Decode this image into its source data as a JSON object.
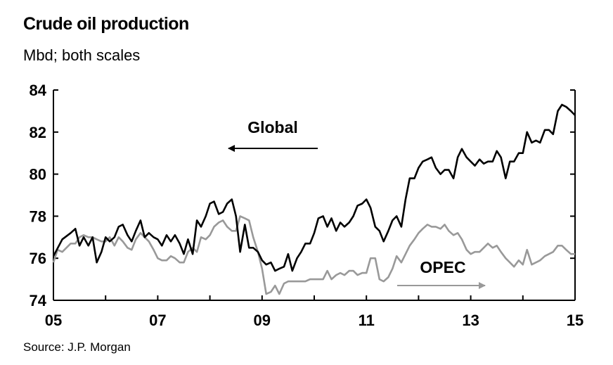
{
  "title": "Crude oil production",
  "subtitle": "Mbd; both scales",
  "source": "Source: J.P. Morgan",
  "chart_data": {
    "type": "line",
    "title": "Crude oil production",
    "subtitle": "Mbd; both scales",
    "xlim": [
      2005,
      2015
    ],
    "ylim": [
      74,
      84
    ],
    "y_ticks": [
      74,
      76,
      78,
      80,
      82,
      84
    ],
    "x_ticks": [
      2005,
      2007,
      2009,
      2011,
      2013,
      2015
    ],
    "x_tick_labels": [
      "05",
      "07",
      "09",
      "11",
      "13",
      "15"
    ],
    "y_tick_labels": [
      "74",
      "76",
      "78",
      "80",
      "82",
      "84"
    ],
    "grid": false,
    "series": [
      {
        "name": "Global",
        "color": "#000000",
        "annotation": "Global",
        "annotation_arrow": "left",
        "points": [
          [
            2005.0,
            76.1
          ],
          [
            2005.17,
            76.9
          ],
          [
            2005.33,
            77.2
          ],
          [
            2005.42,
            77.4
          ],
          [
            2005.5,
            76.6
          ],
          [
            2005.58,
            77.0
          ],
          [
            2005.67,
            76.6
          ],
          [
            2005.75,
            77.0
          ],
          [
            2005.83,
            75.8
          ],
          [
            2005.92,
            76.3
          ],
          [
            2006.0,
            77.0
          ],
          [
            2006.08,
            76.8
          ],
          [
            2006.17,
            77.0
          ],
          [
            2006.25,
            77.5
          ],
          [
            2006.33,
            77.6
          ],
          [
            2006.42,
            77.1
          ],
          [
            2006.5,
            76.8
          ],
          [
            2006.58,
            77.3
          ],
          [
            2006.67,
            77.8
          ],
          [
            2006.75,
            77.0
          ],
          [
            2006.83,
            77.2
          ],
          [
            2006.92,
            77.0
          ],
          [
            2007.0,
            76.9
          ],
          [
            2007.08,
            76.6
          ],
          [
            2007.17,
            77.1
          ],
          [
            2007.25,
            76.8
          ],
          [
            2007.33,
            77.1
          ],
          [
            2007.42,
            76.7
          ],
          [
            2007.5,
            76.2
          ],
          [
            2007.58,
            76.9
          ],
          [
            2007.67,
            76.2
          ],
          [
            2007.75,
            77.8
          ],
          [
            2007.83,
            77.5
          ],
          [
            2007.92,
            78.0
          ],
          [
            2008.0,
            78.6
          ],
          [
            2008.08,
            78.7
          ],
          [
            2008.17,
            78.1
          ],
          [
            2008.25,
            78.2
          ],
          [
            2008.33,
            78.6
          ],
          [
            2008.42,
            78.8
          ],
          [
            2008.5,
            78.0
          ],
          [
            2008.58,
            76.3
          ],
          [
            2008.67,
            77.6
          ],
          [
            2008.75,
            76.5
          ],
          [
            2008.83,
            76.5
          ],
          [
            2008.92,
            76.3
          ],
          [
            2009.0,
            75.9
          ],
          [
            2009.08,
            75.7
          ],
          [
            2009.17,
            75.8
          ],
          [
            2009.25,
            75.4
          ],
          [
            2009.33,
            75.5
          ],
          [
            2009.42,
            75.6
          ],
          [
            2009.5,
            76.2
          ],
          [
            2009.58,
            75.4
          ],
          [
            2009.67,
            76.0
          ],
          [
            2009.75,
            76.3
          ],
          [
            2009.83,
            76.7
          ],
          [
            2009.92,
            76.7
          ],
          [
            2010.0,
            77.2
          ],
          [
            2010.08,
            77.9
          ],
          [
            2010.17,
            78.0
          ],
          [
            2010.25,
            77.5
          ],
          [
            2010.33,
            77.9
          ],
          [
            2010.42,
            77.3
          ],
          [
            2010.5,
            77.7
          ],
          [
            2010.58,
            77.5
          ],
          [
            2010.67,
            77.7
          ],
          [
            2010.75,
            78.0
          ],
          [
            2010.83,
            78.5
          ],
          [
            2010.92,
            78.6
          ],
          [
            2011.0,
            78.8
          ],
          [
            2011.08,
            78.4
          ],
          [
            2011.17,
            77.5
          ],
          [
            2011.25,
            77.3
          ],
          [
            2011.33,
            76.8
          ],
          [
            2011.42,
            77.3
          ],
          [
            2011.5,
            77.8
          ],
          [
            2011.58,
            78.0
          ],
          [
            2011.67,
            77.5
          ],
          [
            2011.75,
            78.8
          ],
          [
            2011.83,
            79.8
          ],
          [
            2011.92,
            79.8
          ],
          [
            2012.0,
            80.3
          ],
          [
            2012.08,
            80.6
          ],
          [
            2012.17,
            80.7
          ],
          [
            2012.25,
            80.8
          ],
          [
            2012.33,
            80.3
          ],
          [
            2012.42,
            80.0
          ],
          [
            2012.5,
            80.2
          ],
          [
            2012.58,
            80.2
          ],
          [
            2012.67,
            79.8
          ],
          [
            2012.75,
            80.8
          ],
          [
            2012.83,
            81.2
          ],
          [
            2012.92,
            80.8
          ],
          [
            2013.0,
            80.6
          ],
          [
            2013.08,
            80.4
          ],
          [
            2013.17,
            80.7
          ],
          [
            2013.25,
            80.5
          ],
          [
            2013.33,
            80.6
          ],
          [
            2013.42,
            80.6
          ],
          [
            2013.5,
            81.1
          ],
          [
            2013.58,
            80.8
          ],
          [
            2013.67,
            79.8
          ],
          [
            2013.75,
            80.6
          ],
          [
            2013.83,
            80.6
          ],
          [
            2013.92,
            81.0
          ],
          [
            2014.0,
            81.0
          ],
          [
            2014.08,
            82.0
          ],
          [
            2014.17,
            81.5
          ],
          [
            2014.25,
            81.6
          ],
          [
            2014.33,
            81.5
          ],
          [
            2014.42,
            82.1
          ],
          [
            2014.5,
            82.1
          ],
          [
            2014.58,
            81.9
          ],
          [
            2014.67,
            83.0
          ],
          [
            2014.75,
            83.3
          ],
          [
            2014.83,
            83.2
          ],
          [
            2014.92,
            83.0
          ],
          [
            2015.0,
            82.8
          ]
        ]
      },
      {
        "name": "OPEC",
        "color": "#999999",
        "annotation": "OPEC",
        "annotation_arrow": "right",
        "points": [
          [
            2005.0,
            75.8
          ],
          [
            2005.08,
            76.4
          ],
          [
            2005.17,
            76.3
          ],
          [
            2005.25,
            76.5
          ],
          [
            2005.33,
            76.7
          ],
          [
            2005.42,
            76.7
          ],
          [
            2005.5,
            77.0
          ],
          [
            2005.58,
            77.1
          ],
          [
            2005.67,
            77.0
          ],
          [
            2005.75,
            77.0
          ],
          [
            2005.83,
            76.9
          ],
          [
            2005.92,
            76.8
          ],
          [
            2006.0,
            76.8
          ],
          [
            2006.08,
            77.0
          ],
          [
            2006.17,
            76.6
          ],
          [
            2006.25,
            77.0
          ],
          [
            2006.33,
            76.8
          ],
          [
            2006.42,
            76.5
          ],
          [
            2006.5,
            76.4
          ],
          [
            2006.58,
            76.9
          ],
          [
            2006.67,
            77.2
          ],
          [
            2006.75,
            77.0
          ],
          [
            2006.83,
            76.8
          ],
          [
            2006.92,
            76.4
          ],
          [
            2007.0,
            76.0
          ],
          [
            2007.08,
            75.9
          ],
          [
            2007.17,
            75.9
          ],
          [
            2007.25,
            76.1
          ],
          [
            2007.33,
            76.0
          ],
          [
            2007.42,
            75.8
          ],
          [
            2007.5,
            75.8
          ],
          [
            2007.58,
            76.3
          ],
          [
            2007.67,
            76.5
          ],
          [
            2007.75,
            76.3
          ],
          [
            2007.83,
            77.0
          ],
          [
            2007.92,
            76.9
          ],
          [
            2008.0,
            77.1
          ],
          [
            2008.08,
            77.5
          ],
          [
            2008.17,
            77.7
          ],
          [
            2008.25,
            77.8
          ],
          [
            2008.33,
            77.5
          ],
          [
            2008.42,
            77.3
          ],
          [
            2008.5,
            77.3
          ],
          [
            2008.58,
            78.0
          ],
          [
            2008.67,
            77.9
          ],
          [
            2008.75,
            77.8
          ],
          [
            2008.83,
            77.0
          ],
          [
            2008.92,
            76.3
          ],
          [
            2009.0,
            75.5
          ],
          [
            2009.08,
            74.3
          ],
          [
            2009.17,
            74.4
          ],
          [
            2009.25,
            74.7
          ],
          [
            2009.33,
            74.3
          ],
          [
            2009.42,
            74.8
          ],
          [
            2009.5,
            74.9
          ],
          [
            2009.67,
            74.9
          ],
          [
            2009.83,
            74.9
          ],
          [
            2009.92,
            75.0
          ],
          [
            2010.0,
            75.0
          ],
          [
            2010.17,
            75.0
          ],
          [
            2010.25,
            75.4
          ],
          [
            2010.33,
            75.0
          ],
          [
            2010.42,
            75.2
          ],
          [
            2010.5,
            75.3
          ],
          [
            2010.58,
            75.2
          ],
          [
            2010.67,
            75.4
          ],
          [
            2010.75,
            75.4
          ],
          [
            2010.83,
            75.2
          ],
          [
            2010.92,
            75.3
          ],
          [
            2011.0,
            75.3
          ],
          [
            2011.08,
            76.0
          ],
          [
            2011.17,
            76.0
          ],
          [
            2011.25,
            75.0
          ],
          [
            2011.33,
            74.9
          ],
          [
            2011.42,
            75.1
          ],
          [
            2011.5,
            75.5
          ],
          [
            2011.58,
            76.1
          ],
          [
            2011.67,
            75.8
          ],
          [
            2011.75,
            76.2
          ],
          [
            2011.83,
            76.6
          ],
          [
            2011.92,
            76.9
          ],
          [
            2012.0,
            77.2
          ],
          [
            2012.08,
            77.4
          ],
          [
            2012.17,
            77.6
          ],
          [
            2012.25,
            77.5
          ],
          [
            2012.33,
            77.5
          ],
          [
            2012.42,
            77.4
          ],
          [
            2012.5,
            77.6
          ],
          [
            2012.58,
            77.3
          ],
          [
            2012.67,
            77.1
          ],
          [
            2012.75,
            77.2
          ],
          [
            2012.83,
            76.9
          ],
          [
            2012.92,
            76.4
          ],
          [
            2013.0,
            76.2
          ],
          [
            2013.08,
            76.3
          ],
          [
            2013.17,
            76.3
          ],
          [
            2013.25,
            76.5
          ],
          [
            2013.33,
            76.7
          ],
          [
            2013.42,
            76.5
          ],
          [
            2013.5,
            76.6
          ],
          [
            2013.58,
            76.3
          ],
          [
            2013.67,
            76.0
          ],
          [
            2013.75,
            75.8
          ],
          [
            2013.83,
            75.6
          ],
          [
            2013.92,
            75.9
          ],
          [
            2014.0,
            75.7
          ],
          [
            2014.08,
            76.4
          ],
          [
            2014.17,
            75.7
          ],
          [
            2014.25,
            75.8
          ],
          [
            2014.33,
            75.9
          ],
          [
            2014.42,
            76.1
          ],
          [
            2014.5,
            76.2
          ],
          [
            2014.58,
            76.3
          ],
          [
            2014.67,
            76.6
          ],
          [
            2014.75,
            76.6
          ],
          [
            2014.83,
            76.4
          ],
          [
            2014.92,
            76.2
          ],
          [
            2015.0,
            76.2
          ]
        ]
      }
    ]
  }
}
